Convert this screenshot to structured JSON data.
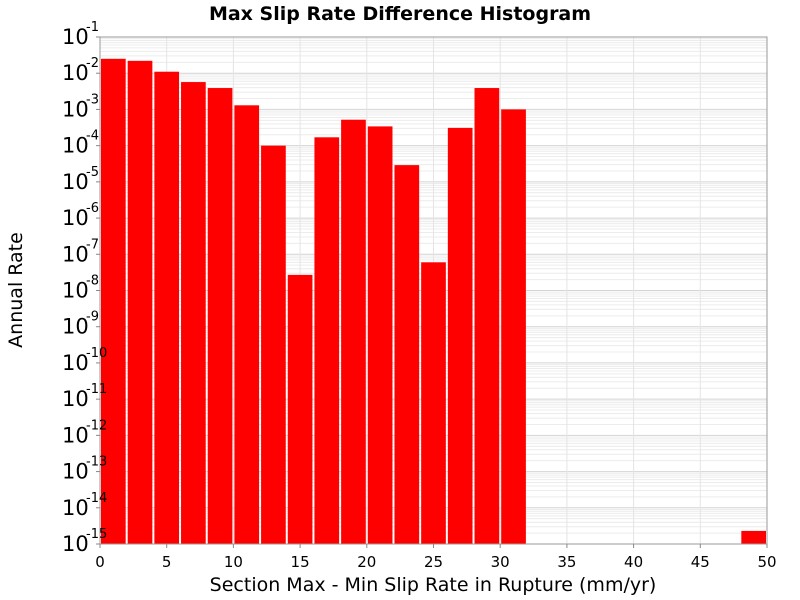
{
  "chart_data": {
    "type": "bar",
    "title": "Max Slip Rate Difference Histogram",
    "xlabel": "Section Max - Min Slip Rate in Rupture (mm/yr)",
    "ylabel": "Annual Rate",
    "xlim": [
      0,
      50
    ],
    "ylim": [
      1e-15,
      0.1
    ],
    "yscale": "log",
    "grid": true,
    "bar_color": "#ff0000",
    "bin_width": 2,
    "x": [
      1,
      3,
      5,
      7,
      9,
      11,
      13,
      15,
      17,
      19,
      21,
      23,
      25,
      27,
      29,
      31,
      49
    ],
    "values": [
      0.025,
      0.022,
      0.011,
      0.0057,
      0.0039,
      0.0013,
      0.0001,
      2.7e-08,
      0.00017,
      0.00052,
      0.00034,
      2.9e-05,
      6e-08,
      0.00031,
      0.0039,
      0.001,
      2.3e-15
    ],
    "x_ticks": [
      "0",
      "5",
      "10",
      "15",
      "20",
      "25",
      "30",
      "35",
      "40",
      "45",
      "50"
    ],
    "y_ticks": [
      {
        "base": "10",
        "exp": "-1"
      },
      {
        "base": "10",
        "exp": "-2"
      },
      {
        "base": "10",
        "exp": "-3"
      },
      {
        "base": "10",
        "exp": "-4"
      },
      {
        "base": "10",
        "exp": "-5"
      },
      {
        "base": "10",
        "exp": "-6"
      },
      {
        "base": "10",
        "exp": "-7"
      },
      {
        "base": "10",
        "exp": "-8"
      },
      {
        "base": "10",
        "exp": "-9"
      },
      {
        "base": "10",
        "exp": "-10"
      },
      {
        "base": "10",
        "exp": "-11"
      },
      {
        "base": "10",
        "exp": "-12"
      },
      {
        "base": "10",
        "exp": "-13"
      },
      {
        "base": "10",
        "exp": "-14"
      },
      {
        "base": "10",
        "exp": "-15"
      }
    ]
  }
}
